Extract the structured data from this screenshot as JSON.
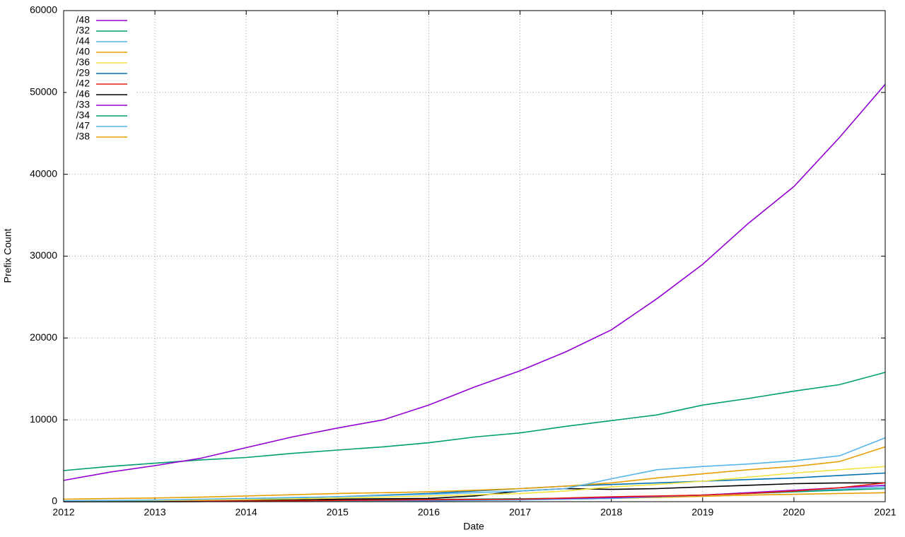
{
  "chart_data": {
    "type": "line",
    "xlabel": "Date",
    "ylabel": "Prefix Count",
    "x": [
      2012,
      2012.5,
      2013,
      2013.5,
      2014,
      2014.5,
      2015,
      2015.5,
      2016,
      2016.5,
      2017,
      2017.5,
      2018,
      2018.5,
      2019,
      2019.5,
      2020,
      2020.5,
      2021
    ],
    "xlim": [
      2012,
      2021
    ],
    "xticks": [
      2012,
      2013,
      2014,
      2015,
      2016,
      2017,
      2018,
      2019,
      2020,
      2021
    ],
    "ylim": [
      0,
      60000
    ],
    "yticks": [
      0,
      10000,
      20000,
      30000,
      40000,
      50000,
      60000
    ],
    "grid": true,
    "legend": "top-left",
    "series": [
      {
        "name": "/48",
        "color": "#9400d3",
        "values": [
          2600,
          3600,
          4400,
          5300,
          6600,
          7900,
          9000,
          10000,
          11800,
          14000,
          16000,
          18300,
          21000,
          24800,
          29000,
          34000,
          38500,
          44500,
          51000
        ]
      },
      {
        "name": "/32",
        "color": "#009e73",
        "values": [
          3800,
          4300,
          4700,
          5100,
          5400,
          5900,
          6300,
          6700,
          7200,
          7900,
          8400,
          9200,
          9900,
          10600,
          11800,
          12600,
          13500,
          14300,
          15800
        ]
      },
      {
        "name": "/44",
        "color": "#56b4e9",
        "values": [
          100,
          150,
          200,
          300,
          400,
          500,
          600,
          750,
          900,
          1100,
          1300,
          1600,
          2800,
          3900,
          4300,
          4600,
          5000,
          5600,
          7800
        ]
      },
      {
        "name": "/40",
        "color": "#e69f00",
        "values": [
          300,
          380,
          450,
          550,
          700,
          850,
          1000,
          1100,
          1200,
          1400,
          1600,
          1900,
          2300,
          2900,
          3400,
          3900,
          4300,
          4900,
          6700
        ]
      },
      {
        "name": "/36",
        "color": "#f0e442",
        "values": [
          100,
          120,
          150,
          200,
          250,
          350,
          450,
          550,
          700,
          850,
          1000,
          1300,
          1800,
          2100,
          2500,
          3000,
          3500,
          3900,
          4300
        ]
      },
      {
        "name": "/29",
        "color": "#0072b2",
        "values": [
          50,
          80,
          120,
          200,
          300,
          450,
          600,
          800,
          1000,
          1300,
          1600,
          1900,
          2100,
          2300,
          2500,
          2700,
          2900,
          3200,
          3500
        ]
      },
      {
        "name": "/42",
        "color": "#e51e10",
        "values": [
          20,
          30,
          40,
          60,
          80,
          110,
          150,
          200,
          250,
          280,
          300,
          450,
          600,
          700,
          800,
          1000,
          1300,
          1700,
          2300
        ]
      },
      {
        "name": "/46",
        "color": "#000000",
        "values": [
          0,
          0,
          0,
          20,
          100,
          200,
          300,
          350,
          400,
          700,
          1300,
          1600,
          1500,
          1600,
          1800,
          2000,
          2200,
          2300,
          2300
        ]
      },
      {
        "name": "/33",
        "color": "#9400d3",
        "values": [
          50,
          60,
          80,
          100,
          120,
          140,
          160,
          190,
          220,
          260,
          300,
          400,
          500,
          650,
          800,
          1100,
          1400,
          1700,
          2000
        ]
      },
      {
        "name": "/34",
        "color": "#009e73",
        "values": [
          100,
          120,
          140,
          160,
          180,
          200,
          220,
          250,
          280,
          320,
          360,
          420,
          500,
          650,
          800,
          1000,
          1200,
          1400,
          1600
        ]
      },
      {
        "name": "/47",
        "color": "#56b4e9",
        "values": [
          0,
          0,
          10,
          20,
          30,
          40,
          60,
          80,
          100,
          150,
          200,
          300,
          400,
          600,
          800,
          1100,
          1300,
          1500,
          1800
        ]
      },
      {
        "name": "/38",
        "color": "#e69f00",
        "values": [
          50,
          60,
          80,
          100,
          120,
          140,
          160,
          180,
          200,
          230,
          260,
          320,
          400,
          520,
          650,
          800,
          900,
          1000,
          1100
        ]
      }
    ]
  }
}
